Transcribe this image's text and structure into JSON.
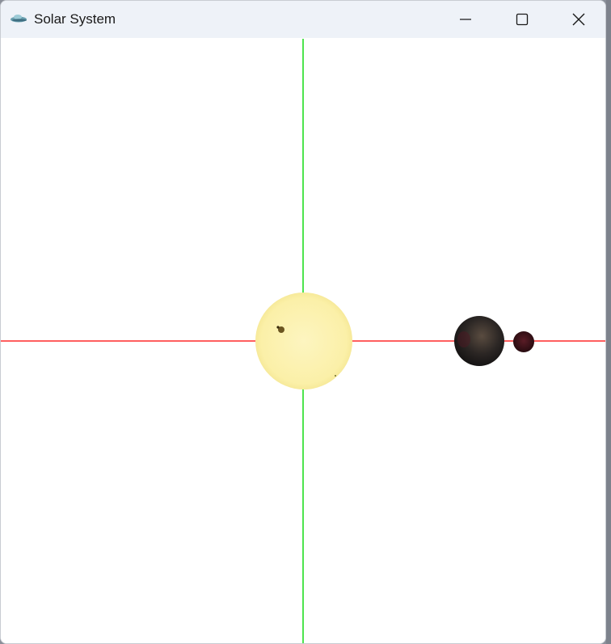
{
  "window": {
    "title": "Solar System",
    "icon": "satellite-app-icon",
    "controls": {
      "minimize_icon": "minimize-icon",
      "maximize_icon": "maximize-icon",
      "close_icon": "close-icon"
    }
  },
  "scene": {
    "background_color": "#ffffff",
    "x_axis_color": "#ff2a2a",
    "y_axis_color": "#22dd22",
    "bodies": [
      {
        "name": "sun",
        "color": "#fbf0a8"
      },
      {
        "name": "planet",
        "color": "#2b2624"
      },
      {
        "name": "moon",
        "color": "#3a1218"
      }
    ]
  }
}
